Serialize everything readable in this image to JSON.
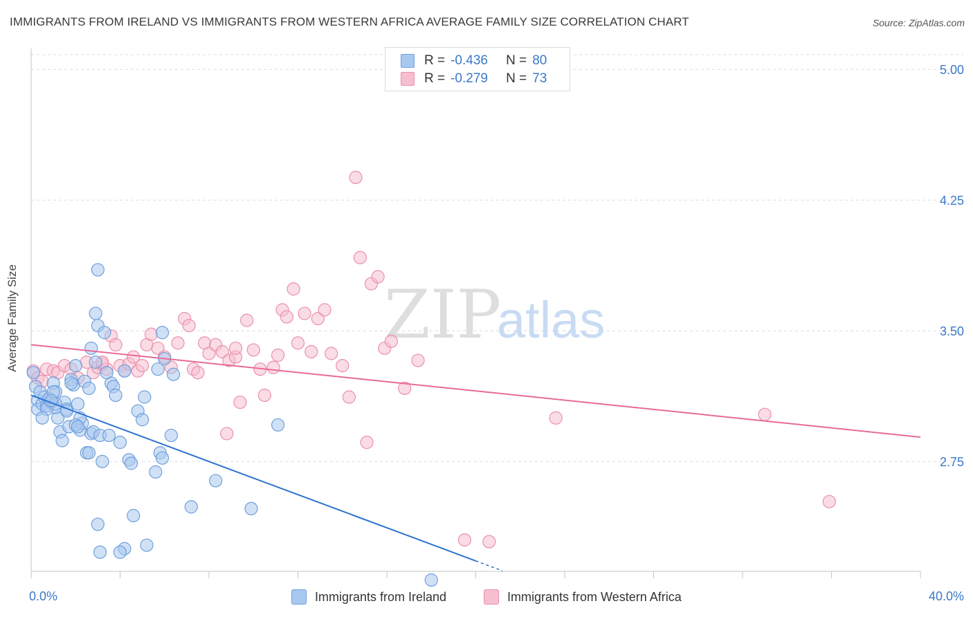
{
  "header": {
    "title": "IMMIGRANTS FROM IRELAND VS IMMIGRANTS FROM WESTERN AFRICA AVERAGE FAMILY SIZE CORRELATION CHART",
    "source": "Source: ZipAtlas.com"
  },
  "watermark": {
    "zip": "ZIP",
    "atlas": "atlas"
  },
  "legend_top": {
    "r_label": "R =",
    "n_label": "N =",
    "rows": [
      {
        "r": "-0.436",
        "n": "80"
      },
      {
        "r": "-0.279",
        "n": "73"
      }
    ]
  },
  "colors": {
    "blue_fill": "#a9c8ef",
    "blue_stroke": "#6e9fdc",
    "blue_line": "#2b72d0",
    "pink_fill": "#f6bfd0",
    "pink_stroke": "#eb8fac",
    "pink_line": "#e8699a",
    "grid": "#dcdcdc",
    "axis_text": "#3b78c9"
  },
  "chart_data": {
    "type": "scatter",
    "title": "IMMIGRANTS FROM IRELAND VS IMMIGRANTS FROM WESTERN AFRICA AVERAGE FAMILY SIZE CORRELATION CHART",
    "xlabel": "",
    "ylabel": "Average Family Size",
    "xlim": [
      0,
      40
    ],
    "ylim": [
      2.12,
      5.12
    ],
    "x_tick_labels": [
      "0.0%",
      "40.0%"
    ],
    "y_ticks": [
      2.75,
      3.5,
      4.25,
      5.0
    ],
    "y_tick_labels": [
      "2.75",
      "3.50",
      "4.25",
      "5.00"
    ],
    "grid": true,
    "legend_position": "top-center",
    "series": [
      {
        "name": "Immigrants from Ireland",
        "color": "#a9c8ef",
        "stats": {
          "R": -0.436,
          "N": 80
        },
        "trend": {
          "x0": 0,
          "y0": 3.13,
          "x1": 20,
          "y1": 2.18,
          "dash_to_x": 21.2
        },
        "points": [
          [
            0.1,
            3.26
          ],
          [
            0.2,
            3.18
          ],
          [
            0.3,
            3.1
          ],
          [
            0.3,
            3.05
          ],
          [
            0.4,
            3.15
          ],
          [
            0.5,
            3.08
          ],
          [
            0.6,
            3.12
          ],
          [
            0.7,
            3.07
          ],
          [
            0.8,
            3.11
          ],
          [
            0.9,
            3.09
          ],
          [
            1.0,
            3.2
          ],
          [
            1.1,
            3.15
          ],
          [
            1.2,
            3.0
          ],
          [
            1.1,
            3.06
          ],
          [
            1.3,
            2.92
          ],
          [
            1.5,
            3.09
          ],
          [
            1.6,
            3.05
          ],
          [
            1.4,
            2.87
          ],
          [
            1.7,
            2.95
          ],
          [
            1.8,
            3.22
          ],
          [
            1.9,
            3.19
          ],
          [
            2.0,
            3.3
          ],
          [
            2.1,
            3.08
          ],
          [
            2.2,
            2.93
          ],
          [
            2.3,
            2.97
          ],
          [
            2.4,
            3.21
          ],
          [
            2.5,
            2.8
          ],
          [
            2.6,
            2.8
          ],
          [
            2.7,
            2.91
          ],
          [
            2.8,
            2.92
          ],
          [
            2.9,
            3.6
          ],
          [
            3.0,
            3.53
          ],
          [
            3.1,
            2.9
          ],
          [
            3.2,
            2.75
          ],
          [
            3.3,
            3.49
          ],
          [
            3.5,
            2.9
          ],
          [
            3.6,
            3.2
          ],
          [
            3.7,
            3.18
          ],
          [
            3.8,
            3.13
          ],
          [
            4.0,
            2.86
          ],
          [
            4.2,
            3.27
          ],
          [
            4.4,
            2.76
          ],
          [
            4.5,
            2.74
          ],
          [
            4.6,
            2.44
          ],
          [
            4.8,
            3.04
          ],
          [
            5.0,
            2.99
          ],
          [
            5.1,
            3.12
          ],
          [
            5.2,
            2.27
          ],
          [
            4.2,
            2.25
          ],
          [
            4.0,
            2.23
          ],
          [
            3.1,
            2.23
          ],
          [
            3.0,
            2.39
          ],
          [
            5.6,
            2.69
          ],
          [
            5.8,
            2.8
          ],
          [
            5.9,
            2.77
          ],
          [
            6.0,
            3.34
          ],
          [
            6.3,
            2.9
          ],
          [
            6.4,
            3.25
          ],
          [
            2.7,
            3.4
          ],
          [
            2.6,
            3.17
          ],
          [
            3.0,
            3.85
          ],
          [
            1.0,
            3.15
          ],
          [
            2.9,
            3.32
          ],
          [
            3.4,
            3.26
          ],
          [
            5.9,
            3.49
          ],
          [
            5.7,
            3.28
          ],
          [
            7.2,
            2.49
          ],
          [
            8.3,
            2.64
          ],
          [
            9.9,
            2.48
          ],
          [
            11.1,
            2.96
          ],
          [
            18.0,
            2.07
          ],
          [
            1.6,
            3.04
          ],
          [
            2.2,
            3.0
          ],
          [
            0.7,
            3.05
          ],
          [
            1.1,
            3.08
          ],
          [
            2.0,
            2.96
          ],
          [
            1.8,
            3.2
          ],
          [
            0.9,
            3.1
          ],
          [
            2.1,
            2.95
          ],
          [
            0.5,
            3.0
          ]
        ]
      },
      {
        "name": "Immigrants from Western Africa",
        "color": "#f6bfd0",
        "stats": {
          "R": -0.279,
          "N": 73
        },
        "trend": {
          "x0": 0,
          "y0": 3.42,
          "x1": 40,
          "y1": 2.89
        },
        "points": [
          [
            0.1,
            3.27
          ],
          [
            0.3,
            3.23
          ],
          [
            0.5,
            3.21
          ],
          [
            0.7,
            3.28
          ],
          [
            1.0,
            3.27
          ],
          [
            1.2,
            3.26
          ],
          [
            1.5,
            3.3
          ],
          [
            1.8,
            3.28
          ],
          [
            2.1,
            3.23
          ],
          [
            2.5,
            3.32
          ],
          [
            2.8,
            3.26
          ],
          [
            3.0,
            3.29
          ],
          [
            3.2,
            3.31
          ],
          [
            3.4,
            3.28
          ],
          [
            3.6,
            3.47
          ],
          [
            3.8,
            3.42
          ],
          [
            4.0,
            3.3
          ],
          [
            4.2,
            3.27
          ],
          [
            4.4,
            3.31
          ],
          [
            4.6,
            3.35
          ],
          [
            4.8,
            3.27
          ],
          [
            5.0,
            3.3
          ],
          [
            5.2,
            3.42
          ],
          [
            5.4,
            3.48
          ],
          [
            5.7,
            3.4
          ],
          [
            6.0,
            3.35
          ],
          [
            6.3,
            3.29
          ],
          [
            6.6,
            3.43
          ],
          [
            6.9,
            3.57
          ],
          [
            7.1,
            3.53
          ],
          [
            7.3,
            3.28
          ],
          [
            7.5,
            3.26
          ],
          [
            7.8,
            3.43
          ],
          [
            8.0,
            3.37
          ],
          [
            8.3,
            3.42
          ],
          [
            8.6,
            3.38
          ],
          [
            8.9,
            3.33
          ],
          [
            9.2,
            3.35
          ],
          [
            9.4,
            3.09
          ],
          [
            9.7,
            3.56
          ],
          [
            10.0,
            3.39
          ],
          [
            10.3,
            3.28
          ],
          [
            10.5,
            3.13
          ],
          [
            10.9,
            3.29
          ],
          [
            11.1,
            3.36
          ],
          [
            11.3,
            3.62
          ],
          [
            11.5,
            3.58
          ],
          [
            11.8,
            3.74
          ],
          [
            12.0,
            3.43
          ],
          [
            12.3,
            3.6
          ],
          [
            12.6,
            3.38
          ],
          [
            12.9,
            3.57
          ],
          [
            13.2,
            3.62
          ],
          [
            13.5,
            3.37
          ],
          [
            14.0,
            3.3
          ],
          [
            14.3,
            3.12
          ],
          [
            14.8,
            3.92
          ],
          [
            15.1,
            2.86
          ],
          [
            15.3,
            3.77
          ],
          [
            15.6,
            3.81
          ],
          [
            15.9,
            3.4
          ],
          [
            16.2,
            3.44
          ],
          [
            16.8,
            3.17
          ],
          [
            17.4,
            3.33
          ],
          [
            14.6,
            4.38
          ],
          [
            19.5,
            2.3
          ],
          [
            20.6,
            2.29
          ],
          [
            23.6,
            3.0
          ],
          [
            33.0,
            3.02
          ],
          [
            35.9,
            2.52
          ],
          [
            8.8,
            2.91
          ],
          [
            3.2,
            3.32
          ],
          [
            9.2,
            3.4
          ]
        ]
      }
    ]
  },
  "legend_bottom": {
    "items": [
      "Immigrants from Ireland",
      "Immigrants from Western Africa"
    ]
  }
}
